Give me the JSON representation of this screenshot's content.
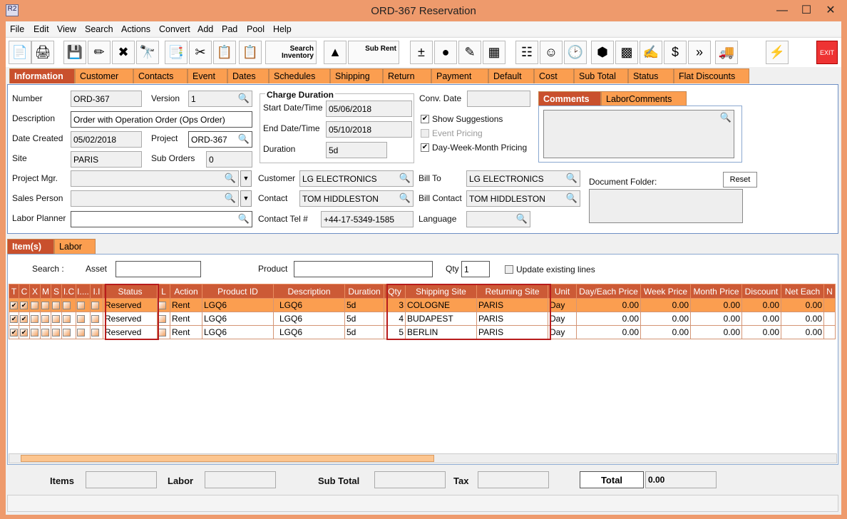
{
  "window": {
    "title": "ORD-367 Reservation",
    "logo": "R2",
    "minimize": "—",
    "maximize": "☐",
    "close": "✕"
  },
  "menu": [
    "File",
    "Edit",
    "View",
    "Search",
    "Actions",
    "Convert",
    "Add",
    "Pad",
    "Pool",
    "Help"
  ],
  "toolbar": {
    "search_inventory": "Search Inventory",
    "sub_rent": "Sub Rent",
    "exit": "EXIT",
    "icons": [
      "new-document-icon",
      "print-icon",
      "save-icon",
      "edit-pencil-icon",
      "delete-icon",
      "binoculars-icon",
      "convert-document-icon",
      "cut-icon",
      "copy-icon",
      "paste-icon"
    ]
  },
  "tabs": [
    "Information",
    "Customer",
    "Contacts",
    "Event",
    "Dates",
    "Schedules",
    "Shipping",
    "Return",
    "Payment",
    "Default",
    "Cost",
    "Sub Total",
    "Status",
    "Flat Discounts"
  ],
  "info": {
    "number_label": "Number",
    "number": "ORD-367",
    "version_label": "Version",
    "version": "1",
    "description_label": "Description",
    "description": "Order with Operation Order (Ops Order)",
    "date_created_label": "Date Created",
    "date_created": "05/02/2018",
    "project_label": "Project",
    "project": "ORD-367",
    "site_label": "Site",
    "site": "PARIS",
    "sub_orders_label": "Sub Orders",
    "sub_orders": "0",
    "project_mgr_label": "Project Mgr.",
    "project_mgr": "",
    "sales_person_label": "Sales Person",
    "sales_person": "",
    "labor_planner_label": "Labor Planner",
    "labor_planner": "",
    "charge_duration_title": "Charge Duration",
    "start_label": "Start Date/Time",
    "start": "05/06/2018",
    "end_label": "End Date/Time",
    "end": "05/10/2018",
    "duration_label": "Duration",
    "duration": "5d",
    "conv_date_label": "Conv. Date",
    "conv_date": "",
    "show_suggestions": "Show Suggestions",
    "event_pricing": "Event Pricing",
    "dwm_pricing": "Day-Week-Month Pricing",
    "customer_label": "Customer",
    "customer": "LG ELECTRONICS",
    "contact_label": "Contact",
    "contact": "TOM HIDDLESTON",
    "contact_tel_label": "Contact Tel #",
    "contact_tel": "+44-17-5349-1585",
    "bill_to_label": "Bill To",
    "bill_to": "LG ELECTRONICS",
    "bill_contact_label": "Bill Contact",
    "bill_contact": "TOM HIDDLESTON",
    "language_label": "Language",
    "language": "",
    "comments_tab": "Comments",
    "labor_comments_tab": "LaborComments",
    "document_folder_label": "Document Folder:",
    "reset": "Reset"
  },
  "item_tabs": [
    "Item(s)",
    "Labor"
  ],
  "search": {
    "label": "Search :",
    "asset_label": "Asset",
    "product_label": "Product",
    "qty_label": "Qty",
    "qty": "1",
    "update_label": "Update existing lines"
  },
  "grid": {
    "columns": [
      "T",
      "C",
      "X",
      "M",
      "S",
      "I.C",
      "I....",
      "I.I",
      "Status",
      "L",
      "Action",
      "Product ID",
      "Description",
      "Duration",
      "Qty",
      "Shipping Site",
      "Returning Site",
      "Unit",
      "Day/Each Price",
      "Week Price",
      "Month Price",
      "Discount",
      "Net Each",
      "N"
    ],
    "rows": [
      {
        "status": "Reserved",
        "action": "Rent",
        "product": "LGQ6",
        "desc": "LGQ6",
        "duration": "5d",
        "qty": "3",
        "ship": "COLOGNE",
        "ret": "PARIS",
        "unit": "Day",
        "day": "0.00",
        "week": "0.00",
        "month": "0.00",
        "disc": "0.00",
        "net": "0.00"
      },
      {
        "status": "Reserved",
        "action": "Rent",
        "product": "LGQ6",
        "desc": "LGQ6",
        "duration": "5d",
        "qty": "4",
        "ship": "BUDAPEST",
        "ret": "PARIS",
        "unit": "Day",
        "day": "0.00",
        "week": "0.00",
        "month": "0.00",
        "disc": "0.00",
        "net": "0.00"
      },
      {
        "status": "Reserved",
        "action": "Rent",
        "product": "LGQ6",
        "desc": "LGQ6",
        "duration": "5d",
        "qty": "5",
        "ship": "BERLIN",
        "ret": "PARIS",
        "unit": "Day",
        "day": "0.00",
        "week": "0.00",
        "month": "0.00",
        "disc": "0.00",
        "net": "0.00"
      }
    ]
  },
  "totals": {
    "items_label": "Items",
    "labor_label": "Labor",
    "subtotal_label": "Sub Total",
    "tax_label": "Tax",
    "total_label": "Total",
    "total": "0.00"
  },
  "colors": {
    "accent": "#fb9e50",
    "header": "#cc5a36",
    "active_tab": "#c9502d",
    "frame": "#ee9a6c"
  }
}
